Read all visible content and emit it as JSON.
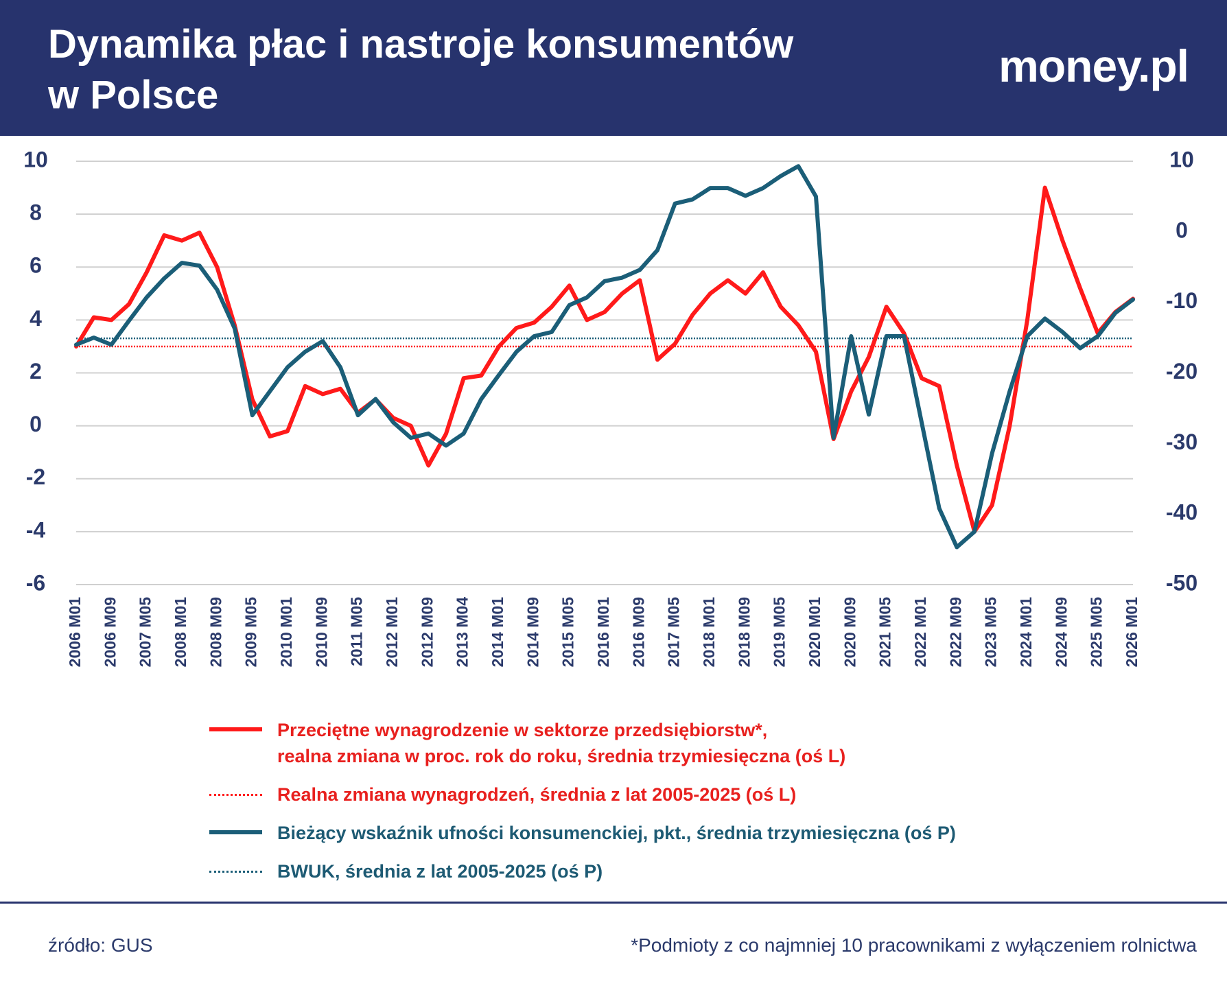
{
  "header": {
    "title": "Dynamika płac i nastroje konsumentów\nw Polsce",
    "logo": "money.pl"
  },
  "chart_data": {
    "type": "line",
    "categories": [
      "2006 M01",
      null,
      "2006 M09",
      null,
      "2007 M05",
      null,
      "2008 M01",
      null,
      "2008 M09",
      null,
      "2009 M05",
      null,
      "2010 M01",
      null,
      "2010 M09",
      null,
      "2011 M05",
      null,
      "2012 M01",
      null,
      "2012 M09",
      null,
      "2013 M04",
      null,
      "2014 M01",
      null,
      "2014 M09",
      null,
      "2015 M05",
      null,
      "2016 M01",
      null,
      "2016 M09",
      null,
      "2017 M05",
      null,
      "2018 M01",
      null,
      "2018 M09",
      null,
      "2019 M05",
      null,
      "2020 M01",
      null,
      "2020 M09",
      null,
      "2021 M05",
      null,
      "2022 M01",
      null,
      "2022 M09",
      null,
      "2023 M05",
      null,
      "2024 M01",
      null,
      "2024 M09",
      null,
      "2025 M05",
      null,
      "2026 M01"
    ],
    "series": [
      {
        "name": "Przeciętne wynagrodzenie w sektorze przedsiębiorstw*,\nrealna zmiana w proc. rok do roku, średnia trzymiesięczna (oś L)",
        "color": "#ff1a1a",
        "text_color": "#e8201e",
        "values": [
          3.0,
          4.1,
          4.0,
          4.6,
          5.8,
          7.2,
          7.0,
          7.3,
          6.0,
          3.8,
          1.0,
          -0.4,
          -0.2,
          1.5,
          1.2,
          1.4,
          0.5,
          1.0,
          0.3,
          0.0,
          -1.5,
          -0.3,
          1.8,
          1.9,
          3.0,
          3.7,
          3.9,
          4.5,
          5.3,
          4.0,
          4.3,
          5.0,
          5.5,
          2.5,
          3.1,
          4.2,
          5.0,
          5.5,
          5.0,
          5.8,
          4.5,
          3.8,
          2.8,
          -0.5,
          1.3,
          2.6,
          4.5,
          3.5,
          1.8,
          1.5,
          -1.5,
          -4.0,
          -3.0,
          0.0,
          4.0,
          9.0,
          7.0,
          5.2,
          3.5,
          4.3,
          4.8
        ]
      },
      {
        "name": "Bieżący wskaźnik ufności konsumenckiej, pkt., średnia trzymiesięczna (oś P)",
        "color": "#1b5e78",
        "text_color": "#1d5a73",
        "axis": "y2",
        "values": [
          -16,
          -15,
          -16,
          -12.6,
          -9.3,
          -6.6,
          -4.4,
          -4.8,
          -8.2,
          -13.7,
          -26,
          -22.6,
          -19.2,
          -17,
          -15.5,
          -19.2,
          -26,
          -23.7,
          -27,
          -29.2,
          -28.6,
          -30.3,
          -28.6,
          -23.7,
          -20.3,
          -17,
          -14.8,
          -14.2,
          -10.4,
          -9.3,
          -7,
          -6.5,
          -5.4,
          -2.6,
          4,
          4.6,
          6.2,
          6.2,
          5.1,
          6.2,
          7.9,
          9.3,
          5,
          -29.2,
          -14.8,
          -25.9,
          -14.8,
          -14.8,
          -27,
          -39.2,
          -44.7,
          -42.5,
          -31.4,
          -22.6,
          -14.8,
          -12.3,
          -14.2,
          -16.5,
          -14.8,
          -11.5,
          -9.6
        ]
      }
    ],
    "reference_lines": [
      {
        "name": "Realna zmiana wynagrodzeń, średnia z lat 2005-2025 (oś L)",
        "value": 3.0,
        "color": "#ff1a1a",
        "text_color": "#e8201e",
        "style": "dotted"
      },
      {
        "name": "BWUK, średnia z lat 2005-2025 (oś P)",
        "value": -15.1,
        "axis": "y2",
        "color": "#1b5e78",
        "text_color": "#1d5a73",
        "style": "dotted"
      }
    ],
    "ylim": [
      -6,
      10
    ],
    "yticks": [
      -6,
      -4,
      -2,
      0,
      2,
      4,
      6,
      8,
      10
    ],
    "y2lim": [
      -50,
      10
    ],
    "y2ticks": [
      -50,
      -40,
      -30,
      -20,
      -10,
      0,
      10
    ],
    "grid": true
  },
  "footer": {
    "source": "źródło: GUS",
    "note": "*Podmioty z co najmniej 10 pracownikami z wyłączeniem rolnictwa"
  }
}
